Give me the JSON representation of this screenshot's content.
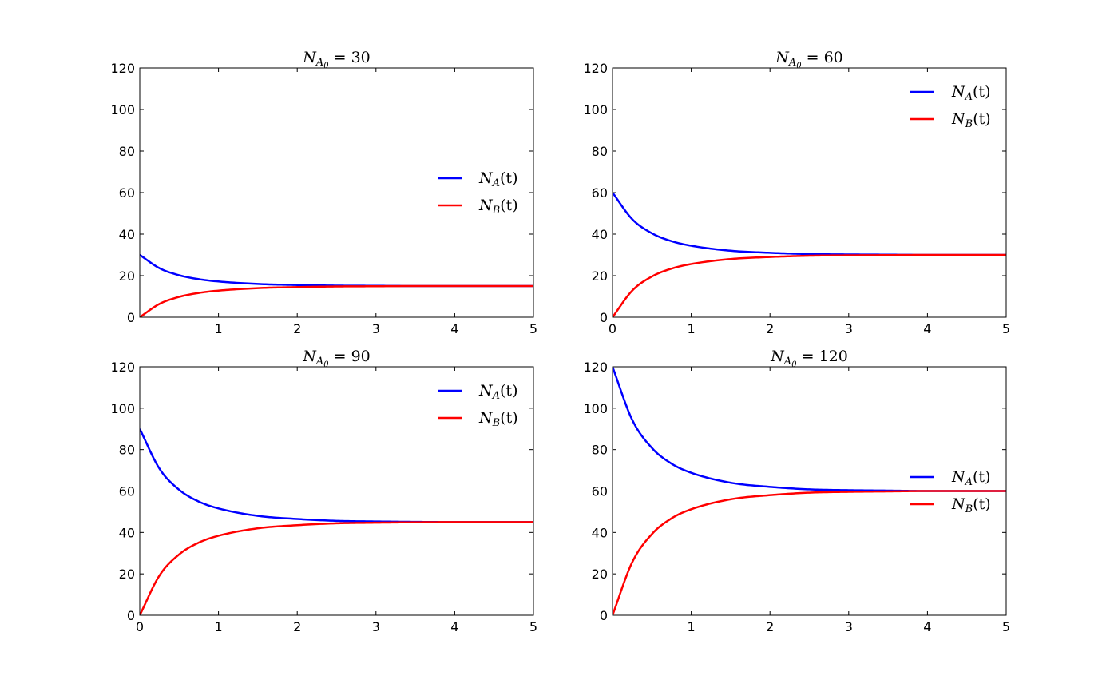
{
  "chart_data": [
    {
      "type": "line",
      "title": "N_{A_0} = 30",
      "title_main": "N",
      "title_sub": "A",
      "title_subsub": "0",
      "title_rest": " = 30",
      "xlim": [
        0,
        5
      ],
      "ylim": [
        0,
        120
      ],
      "xticks": [
        1,
        2,
        3,
        4,
        5
      ],
      "yticks": [
        0,
        20,
        40,
        60,
        80,
        100,
        120
      ],
      "legend_position": "center-right",
      "series": [
        {
          "name": "N_A(t)",
          "color": "#0000ff",
          "x": [
            0,
            0.25,
            0.5,
            0.75,
            1,
            1.5,
            2,
            2.5,
            3,
            3.5,
            4,
            4.5,
            5
          ],
          "values": [
            30,
            23.6,
            20.2,
            18.3,
            17.2,
            16.0,
            15.5,
            15.2,
            15.1,
            15.0,
            15.0,
            15.0,
            15.0
          ]
        },
        {
          "name": "N_B(t)",
          "color": "#ff0000",
          "x": [
            0,
            0.25,
            0.5,
            0.75,
            1,
            1.5,
            2,
            2.5,
            3,
            3.5,
            4,
            4.5,
            5
          ],
          "values": [
            0,
            6.4,
            9.8,
            11.7,
            12.8,
            14.0,
            14.5,
            14.8,
            14.9,
            15.0,
            15.0,
            15.0,
            15.0
          ]
        }
      ]
    },
    {
      "type": "line",
      "title": "N_{A_0} = 60",
      "title_main": "N",
      "title_sub": "A",
      "title_subsub": "0",
      "title_rest": " = 60",
      "xlim": [
        0,
        5
      ],
      "ylim": [
        0,
        120
      ],
      "xticks": [
        0,
        1,
        2,
        3,
        4,
        5
      ],
      "yticks": [
        0,
        20,
        40,
        60,
        80,
        100,
        120
      ],
      "legend_position": "upper-right",
      "series": [
        {
          "name": "N_A(t)",
          "color": "#0000ff",
          "x": [
            0,
            0.25,
            0.5,
            0.75,
            1,
            1.5,
            2,
            2.5,
            3,
            3.5,
            4,
            4.5,
            5
          ],
          "values": [
            60,
            47.2,
            40.4,
            36.6,
            34.4,
            32.0,
            31.0,
            30.4,
            30.2,
            30.1,
            30.0,
            30.0,
            30.0
          ]
        },
        {
          "name": "N_B(t)",
          "color": "#ff0000",
          "x": [
            0,
            0.25,
            0.5,
            0.75,
            1,
            1.5,
            2,
            2.5,
            3,
            3.5,
            4,
            4.5,
            5
          ],
          "values": [
            0,
            12.8,
            19.6,
            23.4,
            25.6,
            28.0,
            29.0,
            29.6,
            29.8,
            29.9,
            30.0,
            30.0,
            30.0
          ]
        }
      ]
    },
    {
      "type": "line",
      "title": "N_{A_0} = 90",
      "title_main": "N",
      "title_sub": "A",
      "title_subsub": "0",
      "title_rest": " = 90",
      "xlim": [
        0,
        5
      ],
      "ylim": [
        0,
        120
      ],
      "xticks": [
        0,
        1,
        2,
        3,
        4,
        5
      ],
      "yticks": [
        0,
        20,
        40,
        60,
        80,
        100,
        120
      ],
      "legend_position": "upper-right",
      "series": [
        {
          "name": "N_A(t)",
          "color": "#0000ff",
          "x": [
            0,
            0.25,
            0.5,
            0.75,
            1,
            1.5,
            2,
            2.5,
            3,
            3.5,
            4,
            4.5,
            5
          ],
          "values": [
            90,
            70.8,
            60.6,
            54.9,
            51.6,
            48.0,
            46.5,
            45.6,
            45.3,
            45.1,
            45.0,
            45.0,
            45.0
          ]
        },
        {
          "name": "N_B(t)",
          "color": "#ff0000",
          "x": [
            0,
            0.25,
            0.5,
            0.75,
            1,
            1.5,
            2,
            2.5,
            3,
            3.5,
            4,
            4.5,
            5
          ],
          "values": [
            0,
            19.2,
            29.4,
            35.1,
            38.4,
            42.0,
            43.5,
            44.4,
            44.7,
            44.9,
            45.0,
            45.0,
            45.0
          ]
        }
      ]
    },
    {
      "type": "line",
      "title": "N_{A_0} = 120",
      "title_main": "N",
      "title_sub": "A",
      "title_subsub": "0",
      "title_rest": " = 120",
      "xlim": [
        0,
        5
      ],
      "ylim": [
        0,
        120
      ],
      "xticks": [
        1,
        2,
        3,
        4,
        5
      ],
      "yticks": [
        0,
        20,
        40,
        60,
        80,
        100,
        120
      ],
      "legend_position": "center-right",
      "series": [
        {
          "name": "N_A(t)",
          "color": "#0000ff",
          "x": [
            0,
            0.25,
            0.5,
            0.75,
            1,
            1.5,
            2,
            2.5,
            3,
            3.5,
            4,
            4.5,
            5
          ],
          "values": [
            120,
            94.4,
            80.8,
            73.2,
            68.8,
            64.0,
            62.0,
            60.8,
            60.4,
            60.2,
            60.0,
            60.0,
            60.0
          ]
        },
        {
          "name": "N_B(t)",
          "color": "#ff0000",
          "x": [
            0,
            0.25,
            0.5,
            0.75,
            1,
            1.5,
            2,
            2.5,
            3,
            3.5,
            4,
            4.5,
            5
          ],
          "values": [
            0,
            25.6,
            39.2,
            46.8,
            51.2,
            56.0,
            58.0,
            59.2,
            59.6,
            59.8,
            60.0,
            60.0,
            60.0
          ]
        }
      ]
    }
  ]
}
